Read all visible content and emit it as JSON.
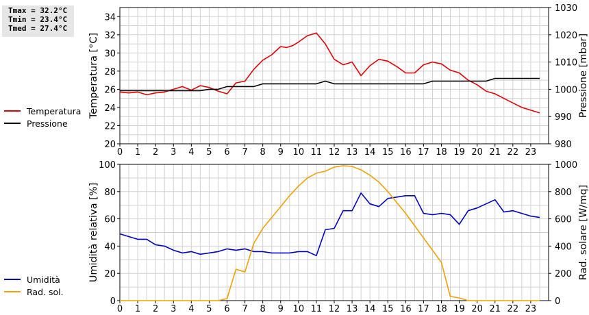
{
  "stats": {
    "tmax": "Tmax = 32.2°C",
    "tmin": "Tmin = 23.4°C",
    "tmed": "Tmed = 27.4°C"
  },
  "colors": {
    "temperatura": "#e00000",
    "pressione": "#000000",
    "umidita": "#0000c0",
    "radiazione": "#f0a000",
    "grid": "#d0d0d0"
  },
  "chart_data": [
    {
      "type": "line",
      "x_ticks": [
        0,
        1,
        2,
        3,
        4,
        5,
        6,
        7,
        8,
        9,
        10,
        11,
        12,
        13,
        14,
        15,
        16,
        17,
        18,
        19,
        20,
        21,
        22,
        23
      ],
      "xlim": [
        0,
        24
      ],
      "ylabel_left": "Temperatura [°C]",
      "ylabel_right": "Pressione [mbar]",
      "ylim_left": [
        20,
        35
      ],
      "yticks_left": [
        20,
        22,
        24,
        26,
        28,
        30,
        32,
        34
      ],
      "ylim_right": [
        980,
        1030
      ],
      "yticks_right": [
        980,
        990,
        1000,
        1010,
        1020,
        1030
      ],
      "grid": true,
      "legend_position": "left",
      "series": [
        {
          "name": "Temperatura",
          "axis": "left",
          "color": "#e00000",
          "x": [
            0,
            0.5,
            1,
            1.5,
            2,
            2.5,
            3,
            3.5,
            4,
            4.5,
            5,
            5.5,
            6,
            6.5,
            7,
            7.5,
            8,
            8.5,
            9,
            9.33,
            9.67,
            10,
            10.5,
            11,
            11.5,
            12,
            12.5,
            13,
            13.5,
            14,
            14.5,
            15,
            15.5,
            16,
            16.5,
            17,
            17.5,
            18,
            18.5,
            19,
            19.5,
            20,
            20.5,
            21,
            21.5,
            22,
            22.5,
            23,
            23.5
          ],
          "y": [
            25.7,
            25.6,
            25.7,
            25.4,
            25.6,
            25.7,
            26.0,
            26.3,
            25.9,
            26.4,
            26.2,
            25.8,
            25.5,
            26.7,
            26.9,
            28.2,
            29.2,
            29.8,
            30.7,
            30.6,
            30.8,
            31.2,
            31.9,
            32.2,
            31.0,
            29.3,
            28.7,
            29.0,
            27.5,
            28.6,
            29.3,
            29.1,
            28.5,
            27.8,
            27.8,
            28.7,
            29.0,
            28.8,
            28.1,
            27.8,
            27.0,
            26.5,
            25.8,
            25.5,
            25.0,
            24.5,
            24.0,
            23.7,
            23.4
          ]
        },
        {
          "name": "Pressione",
          "axis": "right",
          "color": "#000000",
          "x": [
            0,
            4.5,
            5,
            5.5,
            6,
            7.5,
            8,
            11,
            11.5,
            12,
            17,
            17.5,
            20.5,
            21,
            23.5
          ],
          "y": [
            999.5,
            999.5,
            1000,
            1000,
            1001,
            1001,
            1002,
            1002,
            1003,
            1002,
            1002,
            1003,
            1003,
            1004,
            1004
          ]
        }
      ]
    },
    {
      "type": "line",
      "x_ticks": [
        0,
        1,
        2,
        3,
        4,
        5,
        6,
        7,
        8,
        9,
        10,
        11,
        12,
        13,
        14,
        15,
        16,
        17,
        18,
        19,
        20,
        21,
        22,
        23
      ],
      "xlim": [
        0,
        24
      ],
      "ylabel_left": "Umidità relativa [%]",
      "ylabel_right": "Rad. solare [W/mq]",
      "ylim_left": [
        0,
        100
      ],
      "yticks_left": [
        0,
        20,
        40,
        60,
        80,
        100
      ],
      "ylim_right": [
        0,
        1000
      ],
      "yticks_right": [
        0,
        200,
        400,
        600,
        800,
        1000
      ],
      "grid": true,
      "legend_position": "left",
      "series": [
        {
          "name": "Umidità",
          "axis": "left",
          "color": "#0000c0",
          "x": [
            0,
            0.5,
            1,
            1.5,
            2,
            2.5,
            3,
            3.5,
            4,
            4.5,
            5,
            5.5,
            6,
            6.5,
            7,
            7.5,
            8,
            8.5,
            9,
            9.5,
            10,
            10.5,
            11,
            11.5,
            12,
            12.5,
            13,
            13.5,
            14,
            14.5,
            15,
            15.5,
            16,
            16.5,
            17,
            17.5,
            18,
            18.5,
            19,
            19.5,
            20,
            20.5,
            21,
            21.5,
            22,
            22.5,
            23,
            23.5
          ],
          "y": [
            49,
            47,
            45,
            45,
            41,
            40,
            37,
            35,
            36,
            34,
            35,
            36,
            38,
            37,
            38,
            36,
            36,
            35,
            35,
            35,
            36,
            36,
            33,
            52,
            53,
            66,
            66,
            79,
            71,
            69,
            75,
            76,
            77,
            77,
            64,
            63,
            64,
            63,
            56,
            66,
            68,
            71,
            74,
            65,
            66,
            64,
            62,
            61
          ]
        },
        {
          "name": "Rad. sol.",
          "axis": "right",
          "color": "#f0a000",
          "x": [
            0,
            5.5,
            6,
            6.5,
            7,
            7.5,
            8,
            8.5,
            9,
            9.5,
            10,
            10.5,
            11,
            11.5,
            12,
            12.5,
            13,
            13.5,
            14,
            14.5,
            15,
            15.5,
            16,
            16.5,
            17,
            17.5,
            18,
            18.5,
            19,
            19.5,
            20,
            23.5
          ],
          "y": [
            0,
            0,
            15,
            230,
            210,
            420,
            530,
            610,
            690,
            770,
            840,
            900,
            935,
            950,
            980,
            990,
            985,
            960,
            920,
            870,
            800,
            720,
            640,
            550,
            460,
            370,
            280,
            30,
            20,
            0,
            0,
            0
          ]
        }
      ]
    }
  ]
}
